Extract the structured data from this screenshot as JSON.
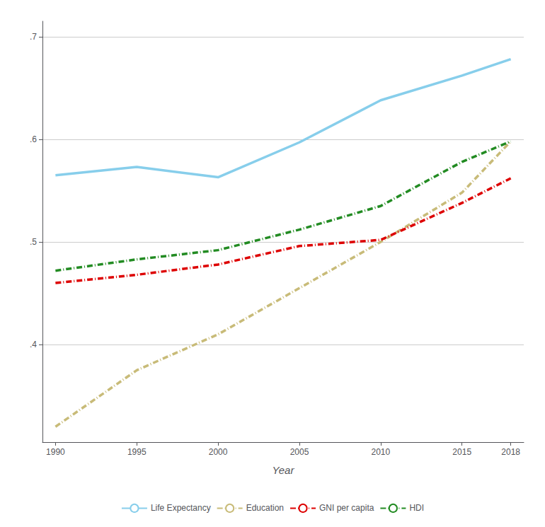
{
  "chart_data": {
    "type": "line",
    "xlabel": "Year",
    "x": [
      1990,
      1995,
      2000,
      2005,
      2010,
      2015,
      2018
    ],
    "series": [
      {
        "name": "Life Expectancy",
        "color": "#87CEEB",
        "line_style": "solid",
        "values": [
          0.565,
          0.573,
          0.563,
          0.597,
          0.638,
          0.662,
          0.678
        ]
      },
      {
        "name": "Education",
        "color": "#C8BB78",
        "line_style": "dashdot",
        "values": [
          0.32,
          0.375,
          0.41,
          0.455,
          0.5,
          0.548,
          0.598
        ]
      },
      {
        "name": "GNI per capita",
        "color": "#DD0000",
        "line_style": "dashdot",
        "values": [
          0.46,
          0.468,
          0.478,
          0.496,
          0.502,
          0.538,
          0.562
        ]
      },
      {
        "name": "HDI",
        "color": "#228B22",
        "line_style": "dashdot",
        "values": [
          0.472,
          0.483,
          0.492,
          0.512,
          0.535,
          0.578,
          0.598
        ]
      }
    ],
    "xlim": [
      1989.2,
      2018.8
    ],
    "xticks": [
      1990,
      1995,
      2000,
      2005,
      2010,
      2015,
      2018
    ],
    "ylim": [
      0.305,
      0.715
    ],
    "yticks": [
      {
        "value": 0.4,
        "label": ".4"
      },
      {
        "value": 0.5,
        "label": ".5"
      },
      {
        "value": 0.6,
        "label": ".6"
      },
      {
        "value": 0.7,
        "label": ".7"
      }
    ],
    "grid": "y",
    "legend": "bottom"
  }
}
